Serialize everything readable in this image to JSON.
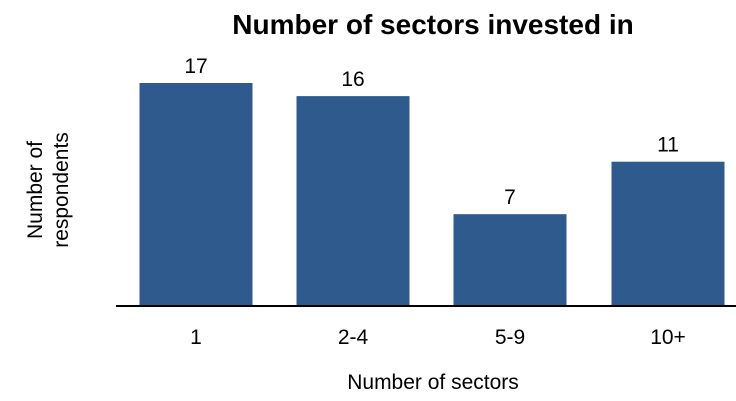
{
  "chart_data": {
    "type": "bar",
    "title": "Number of sectors invested in",
    "xlabel": "Number of sectors",
    "ylabel": [
      "Number of",
      "respondents"
    ],
    "categories": [
      "1",
      "2-4",
      "5-9",
      "10+"
    ],
    "values": [
      17,
      16,
      7,
      11
    ],
    "data_labels": [
      "17",
      "16",
      "7",
      "11"
    ],
    "ylim": [
      0,
      17
    ],
    "bar_color": "#2f5a8d",
    "grid": false,
    "legend": "none"
  }
}
